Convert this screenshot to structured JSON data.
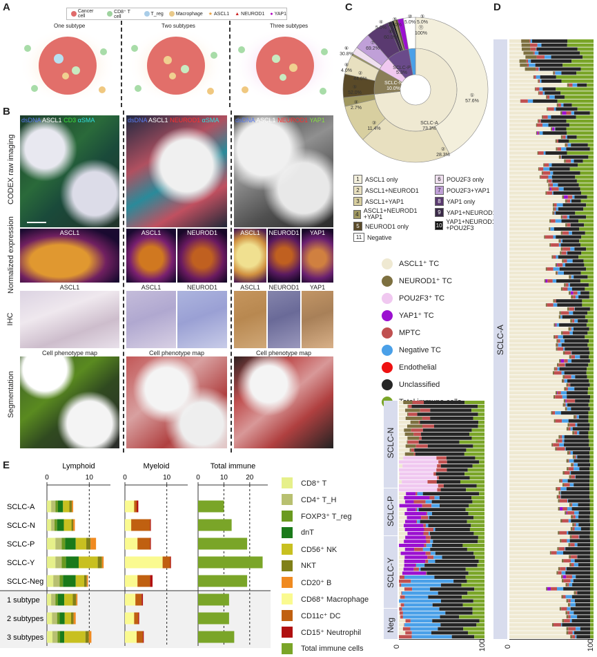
{
  "panels": {
    "a": "A",
    "b": "B",
    "c": "C",
    "d": "D",
    "e": "E"
  },
  "panelA": {
    "legend": [
      "Cancer cell",
      "CD8⁺ T cell",
      "T_reg",
      "Macrophage",
      "ASCL1",
      "NEUROD1",
      "YAP1"
    ],
    "legend_colors": [
      "#e06b6b",
      "#9fd39f",
      "#a9cde8",
      "#e9c98a",
      "#e8a040",
      "#cc2222",
      "#b000c0"
    ],
    "subtypes": [
      "One subtype",
      "Two subtypes",
      "Three subtypes"
    ]
  },
  "panelB": {
    "col1_header": [
      "dsDNA",
      "ASCL1",
      "CD3",
      "αSMA"
    ],
    "col2_header": [
      "dsDNA",
      "ASCL1",
      "NEUROD1",
      "αSMA"
    ],
    "col3_header": [
      "dsDNA",
      "ASCL1",
      "NEUROD1",
      "YAP1"
    ],
    "header_colors": [
      "#3a5bd0",
      "#ffffff",
      "#22c022",
      "#22d0d0",
      "#e02020",
      "#88dd44"
    ],
    "rows": [
      "CODEX raw imaging",
      "Normalized expression",
      "IHC",
      "Segmentation"
    ],
    "norm_labels": [
      [
        "ASCL1"
      ],
      [
        "ASCL1",
        "NEUROD1"
      ],
      [
        "ASCL1",
        "NEUROD1",
        "YAP1"
      ]
    ],
    "ihc_labels": [
      [
        "ASCL1"
      ],
      [
        "ASCL1",
        "NEUROD1"
      ],
      [
        "ASCL1",
        "NEUROD1",
        "YAP1"
      ]
    ],
    "phenotype_label": "Cell phenotype map"
  },
  "panelC": {
    "inner_ring": [
      {
        "label": "SCLC-A",
        "value": "73.3%"
      },
      {
        "label": "SCLC-N",
        "value": "10.0%"
      },
      {
        "label": "SCLC-P",
        "value": "5.3%"
      },
      {
        "label": "SCLC-Y",
        "value": ""
      },
      {
        "label": "Neg",
        "value": ""
      }
    ],
    "outer_ring": [
      {
        "num": "①",
        "value": "57.6%"
      },
      {
        "num": "②",
        "value": "28.3%"
      },
      {
        "num": "③",
        "value": "11.4%"
      },
      {
        "num": "④",
        "value": "2.7%"
      },
      {
        "num": "⑤",
        "value": "52.0%"
      },
      {
        "num": "②",
        "value": "44.0%"
      },
      {
        "num": "④",
        "value": "4.0%"
      },
      {
        "num": "⑥",
        "value": "30.8%"
      },
      {
        "num": "⑦",
        "value": "69.2%"
      },
      {
        "num": "⑧",
        "value": "60.0%"
      },
      {
        "num": "⑨",
        "value": "10.0%"
      },
      {
        "num": "⑩",
        "value": "5.0%"
      },
      {
        "num": "④",
        "value": "5.0%"
      },
      {
        "num": "⑤",
        "value": "5.0%"
      },
      {
        "num": "⑪",
        "value": "100%"
      }
    ],
    "key": [
      {
        "n": "1",
        "t": "ASCL1 only"
      },
      {
        "n": "2",
        "t": "ASCL1+NEUROD1"
      },
      {
        "n": "3",
        "t": "ASCL1+YAP1"
      },
      {
        "n": "4",
        "t": "ASCL1+NEUROD1 +YAP1"
      },
      {
        "n": "5",
        "t": "NEUROD1 only"
      },
      {
        "n": "11",
        "t": "Negative"
      },
      {
        "n": "6",
        "t": "POU2F3 only"
      },
      {
        "n": "7",
        "t": "POU2F3+YAP1"
      },
      {
        "n": "8",
        "t": "YAP1 only"
      },
      {
        "n": "9",
        "t": "YAP1+NEUROD1"
      },
      {
        "n": "10",
        "t": "YAP1+NEUROD1 +POU2F3"
      }
    ]
  },
  "legendD": [
    {
      "t": "ASCL1⁺ TC",
      "c": "#efe9d2"
    },
    {
      "t": "NEUROD1⁺ TC",
      "c": "#7d7040"
    },
    {
      "t": "POU2F3⁺ TC",
      "c": "#f0c8f0"
    },
    {
      "t": "YAP1⁺ TC",
      "c": "#9b10d0"
    },
    {
      "t": "MPTC",
      "c": "#c05050"
    },
    {
      "t": "Negative TC",
      "c": "#4aa0e8"
    },
    {
      "t": "Endothelial",
      "c": "#ee1111"
    },
    {
      "t": "Unclassified",
      "c": "#262626"
    },
    {
      "t": "Total immune cells",
      "c": "#7aa528"
    }
  ],
  "panelD": {
    "groups_left": [
      "SCLC-N",
      "SCLC-P",
      "SCLC-Y",
      "Neg"
    ],
    "group_right": "SCLC-A",
    "axis": [
      "0",
      "100"
    ]
  },
  "chart_data": {
    "type": "bar",
    "orientation": "horizontal-stacked",
    "categories": [
      "SCLC-A",
      "SCLC-N",
      "SCLC-P",
      "SCLC-Y",
      "SCLC-Neg",
      "1 subtype",
      "2 subtypes",
      "3 subtypes"
    ],
    "facets": [
      {
        "title": "Lymphoid",
        "ticks": [
          "0",
          "10"
        ],
        "xlim": [
          0,
          15
        ],
        "series": [
          {
            "name": "CD8⁺ T",
            "color": "#e6f08a",
            "values": [
              1.0,
              1.0,
              2.0,
              2.0,
              1.5,
              1.0,
              1.2,
              1.3
            ]
          },
          {
            "name": "CD4⁺ T_H",
            "color": "#b8c070",
            "values": [
              1.0,
              0.8,
              1.5,
              1.5,
              1.5,
              1.0,
              1.2,
              1.2
            ]
          },
          {
            "name": "FOXP3⁺ T_reg",
            "color": "#6a9a20",
            "values": [
              0.6,
              0.6,
              0.8,
              1.0,
              0.8,
              0.6,
              0.6,
              0.6
            ]
          },
          {
            "name": "dnT",
            "color": "#1a7a1a",
            "values": [
              1.2,
              1.6,
              2.5,
              3.0,
              3.0,
              1.5,
              1.2,
              1.0
            ]
          },
          {
            "name": "CD56⁺ NK",
            "color": "#c8c020",
            "values": [
              1.5,
              1.8,
              2.5,
              4.5,
              2.0,
              2.0,
              1.5,
              5.0
            ]
          },
          {
            "name": "NKT",
            "color": "#808018",
            "values": [
              0.6,
              0.4,
              1.0,
              1.0,
              0.6,
              0.8,
              0.6,
              0.8
            ]
          },
          {
            "name": "CD20⁺ B",
            "color": "#f08a20",
            "values": [
              0.3,
              0.4,
              1.3,
              0.4,
              0.3,
              0.3,
              0.5,
              0.6
            ]
          }
        ]
      },
      {
        "title": "Myeloid",
        "ticks": [
          "0",
          "10"
        ],
        "xlim": [
          0,
          15
        ],
        "series": [
          {
            "name": "CD68⁺ Macrophage",
            "color": "#fafa90",
            "values": [
              2.2,
              1.5,
              3.0,
              9.0,
              3.0,
              2.5,
              2.2,
              2.8
            ]
          },
          {
            "name": "CD11c⁺ DC",
            "color": "#c06010",
            "values": [
              0.6,
              4.5,
              3.0,
              1.8,
              3.0,
              1.5,
              1.0,
              1.5
            ]
          },
          {
            "name": "CD15⁺ Neutrophil",
            "color": "#b01010",
            "values": [
              0.4,
              0.2,
              0.2,
              0.2,
              0.6,
              0.3,
              0.2,
              0.2
            ]
          }
        ]
      },
      {
        "title": "Total immune",
        "ticks": [
          "0",
          "10",
          "20"
        ],
        "xlim": [
          0,
          27
        ],
        "series": [
          {
            "name": "Total immune cells",
            "color": "#7aa528",
            "values": [
              10,
              13,
              19,
              25,
              19,
              12,
              12,
              14
            ]
          }
        ]
      }
    ]
  }
}
